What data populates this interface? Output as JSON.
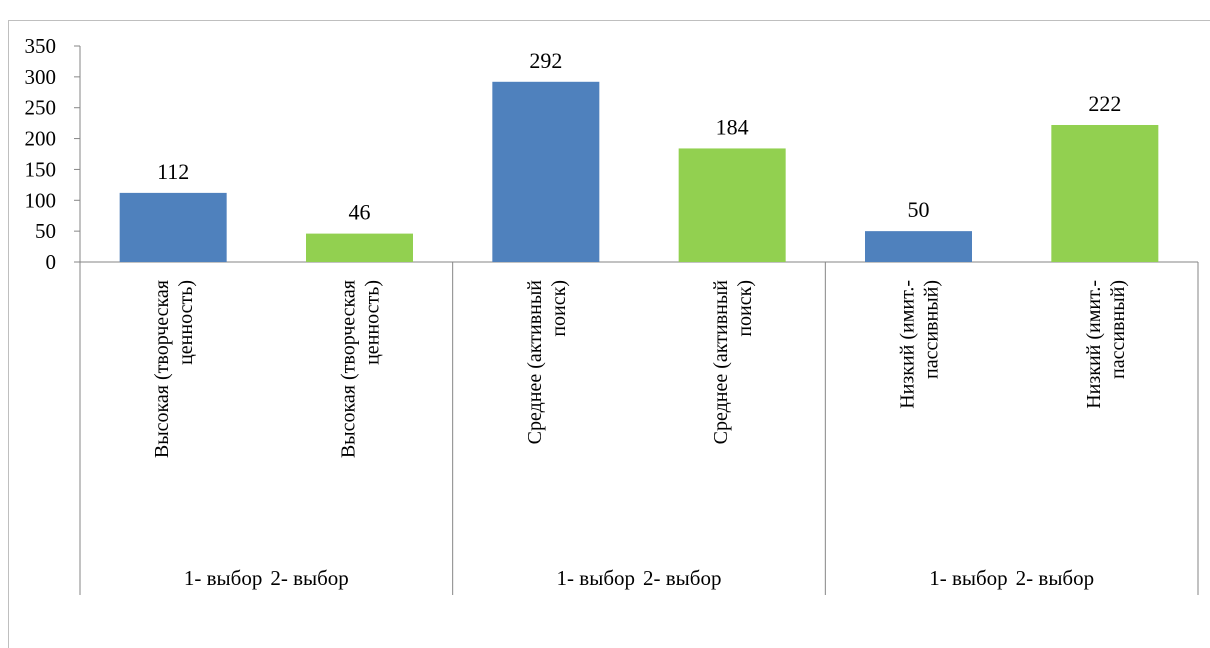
{
  "chart_data": {
    "type": "bar",
    "title": "",
    "xlabel": "",
    "ylabel": "",
    "ylim": [
      0,
      350
    ],
    "yticks": [
      0,
      50,
      100,
      150,
      200,
      250,
      300,
      350
    ],
    "grid": false,
    "legend": "none",
    "colors": {
      "first_choice": "#4f81bd",
      "second_choice": "#92d050"
    },
    "groups": [
      {
        "bars": [
          {
            "category": [
              "Высокая (творческая",
              "ценность)"
            ],
            "choice": "1-  выбор",
            "value": 112,
            "color": "#4f81bd"
          },
          {
            "category": [
              "Высокая (творческая",
              "ценность)"
            ],
            "choice": "2-  выбор",
            "value": 46,
            "color": "#92d050"
          }
        ]
      },
      {
        "bars": [
          {
            "category": [
              "Среднее (активный",
              "поиск)"
            ],
            "choice": "1-  выбор",
            "value": 292,
            "color": "#4f81bd"
          },
          {
            "category": [
              "Среднее (активный",
              "поиск)"
            ],
            "choice": "2-  выбор",
            "value": 184,
            "color": "#92d050"
          }
        ]
      },
      {
        "bars": [
          {
            "category": [
              "Низкий (имит.-",
              "пассивный)"
            ],
            "choice": "1-  выбор",
            "value": 50,
            "color": "#4f81bd"
          },
          {
            "category": [
              "Низкий (имит.-",
              "пассивный)"
            ],
            "choice": "2-  выбор",
            "value": 222,
            "color": "#92d050"
          }
        ]
      }
    ]
  }
}
